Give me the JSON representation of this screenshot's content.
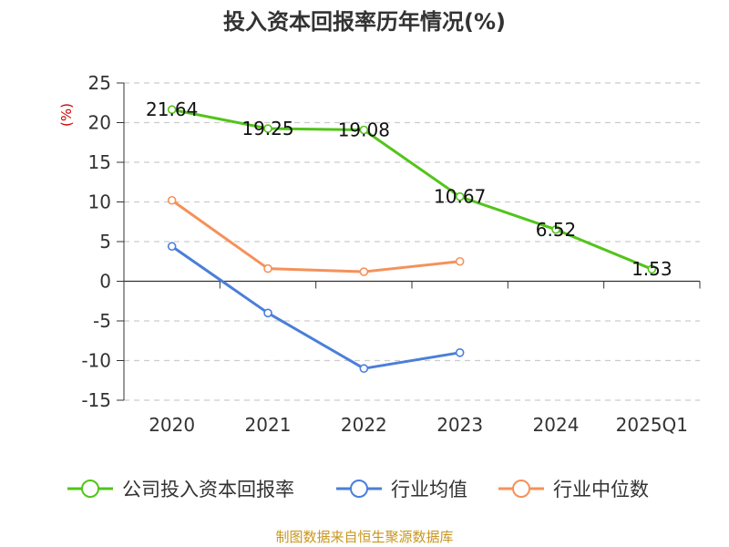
{
  "title": "投入资本回报率历年情况(%)",
  "footer": "制图数据来自恒生聚源数据库",
  "chart_data": {
    "type": "line",
    "unit_label": "(%)",
    "categories": [
      "2020",
      "2021",
      "2022",
      "2023",
      "2024",
      "2025Q1"
    ],
    "ylim": [
      -15,
      25
    ],
    "yticks": [
      25,
      20,
      15,
      10,
      5,
      0,
      -5,
      -10,
      -15
    ],
    "grid": true,
    "legend_position": "bottom",
    "series": [
      {
        "name": "公司投入资本回报率",
        "color": "#52c41a",
        "values": [
          21.64,
          19.25,
          19.08,
          10.67,
          6.52,
          1.53
        ],
        "labels": [
          "21.64",
          "19.25",
          "19.08",
          "10.67",
          "6.52",
          "1.53"
        ]
      },
      {
        "name": "行业均值",
        "color": "#4a7fd9",
        "values": [
          4.4,
          -4.0,
          -11.0,
          -9.0,
          null,
          null
        ]
      },
      {
        "name": "行业中位数",
        "color": "#f5915a",
        "values": [
          10.2,
          1.6,
          1.2,
          2.5,
          null,
          null
        ]
      }
    ]
  }
}
